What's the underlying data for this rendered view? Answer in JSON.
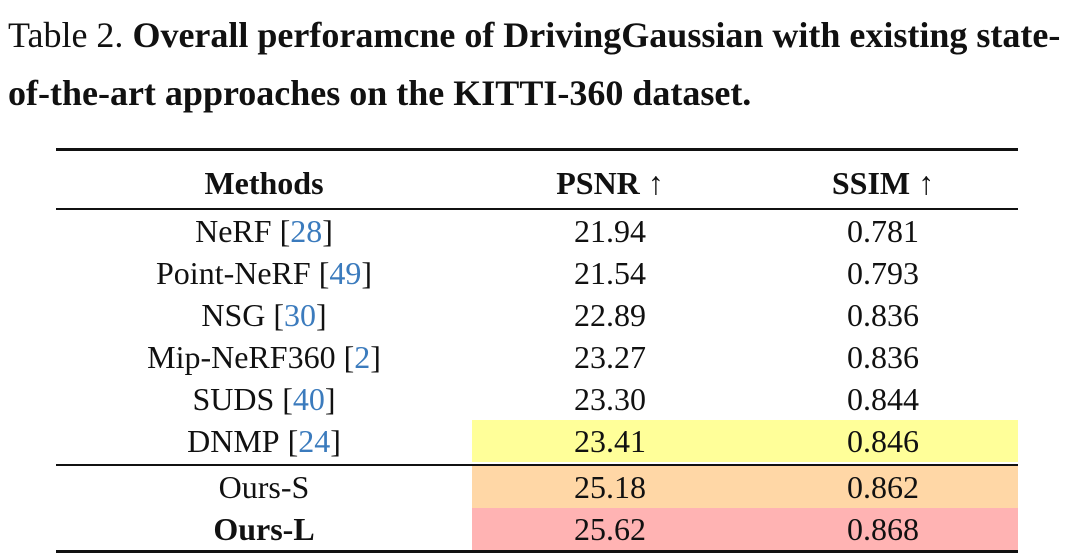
{
  "caption": {
    "label": "Table 2.",
    "text": "Overall perforamcne of DrivingGaussian with existing state-of-the-art approaches on the KITTI-360 dataset."
  },
  "table": {
    "headers": [
      "Methods",
      "PSNR ↑",
      "SSIM ↑"
    ],
    "rows": [
      {
        "method": "NeRF",
        "ref": "28",
        "psnr": "21.94",
        "ssim": "0.781"
      },
      {
        "method": "Point-NeRF",
        "ref": "49",
        "psnr": "21.54",
        "ssim": "0.793"
      },
      {
        "method": "NSG",
        "ref": "30",
        "psnr": "22.89",
        "ssim": "0.836"
      },
      {
        "method": "Mip-NeRF360",
        "ref": "2",
        "psnr": "23.27",
        "ssim": "0.836"
      },
      {
        "method": "SUDS",
        "ref": "40",
        "psnr": "23.30",
        "ssim": "0.844"
      },
      {
        "method": "DNMP",
        "ref": "24",
        "psnr": "23.41",
        "ssim": "0.846"
      },
      {
        "method": "Ours-S",
        "psnr": "25.18",
        "ssim": "0.862"
      },
      {
        "method": "Ours-L",
        "psnr": "25.62",
        "ssim": "0.868"
      }
    ],
    "highlight_colors": {
      "third_best": "#ffff99",
      "second_best": "#ffd7a6",
      "best": "#ffb3b3"
    },
    "reference_link_color": "#3b7bbd"
  }
}
